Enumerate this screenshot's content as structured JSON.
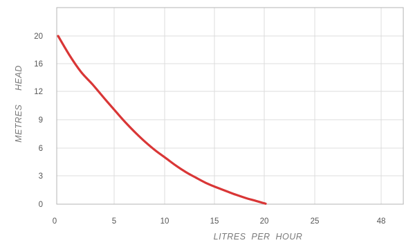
{
  "chart_data": {
    "type": "line",
    "title": "",
    "xlabel": "LITRES  PER  HOUR",
    "ylabel": "METRES     HEAD",
    "x_tick_labels": [
      "0",
      "5",
      "10",
      "15",
      "20",
      "25",
      "48"
    ],
    "y_tick_labels": [
      "0",
      "3",
      "6",
      "9",
      "12",
      "16",
      "20"
    ],
    "grid": true,
    "series": [
      {
        "color": "#d93636",
        "x": [
          0,
          1,
          2,
          3,
          4,
          5,
          6,
          7,
          8,
          9,
          10,
          11,
          12,
          13,
          14,
          15,
          16,
          17,
          18,
          19,
          20
        ],
        "y": [
          20,
          17.2,
          14.8,
          13.0,
          11.3,
          9.9,
          8.7,
          7.6,
          6.6,
          5.7,
          4.9,
          4.1,
          3.4,
          2.8,
          2.25,
          1.8,
          1.4,
          1.0,
          0.65,
          0.35,
          0.05
        ]
      }
    ]
  }
}
